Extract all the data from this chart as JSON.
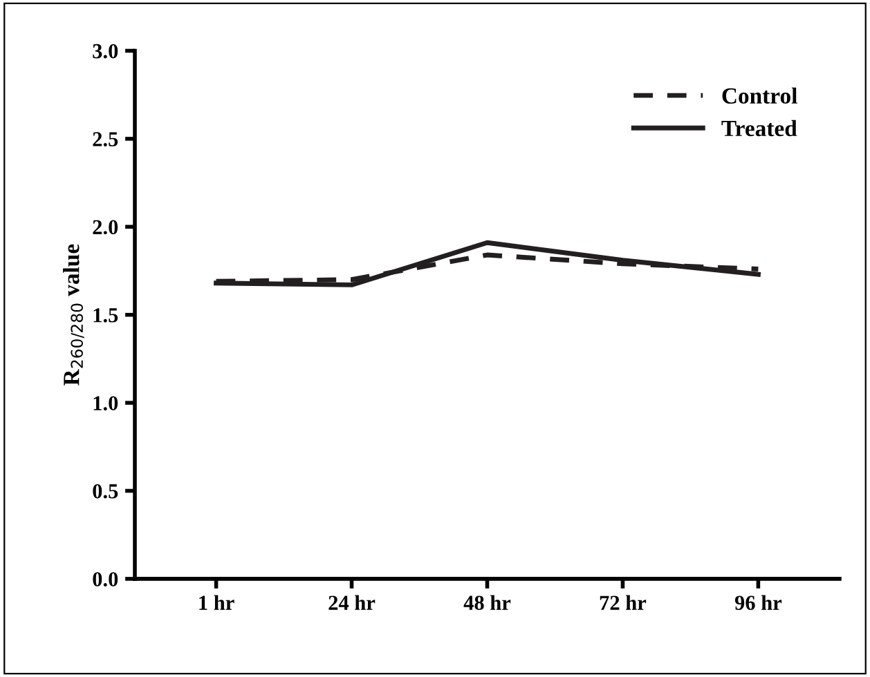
{
  "chart_data": {
    "type": "line",
    "ylabel": "R$_{260/280}$ value",
    "categories": [
      "1 hr",
      "24 hr",
      "48 hr",
      "72 hr",
      "96 hr"
    ],
    "series": [
      {
        "name": "Control",
        "color": "#231f20",
        "line_style": "dashed",
        "values": [
          1.69,
          1.7,
          1.84,
          1.79,
          1.76
        ]
      },
      {
        "name": "Treated",
        "color": "#231f20",
        "line_style": "solid",
        "values": [
          1.68,
          1.67,
          1.91,
          1.81,
          1.73
        ]
      }
    ],
    "ylim": [
      0,
      3
    ],
    "yticks": [
      {
        "value": 0,
        "label": "0.0"
      },
      {
        "value": 0.5,
        "label": "0.5"
      },
      {
        "value": 1,
        "label": "1.0"
      },
      {
        "value": 1.5,
        "label": "1.5"
      },
      {
        "value": 2,
        "label": "2.0"
      },
      {
        "value": 2.5,
        "label": "2.5"
      },
      {
        "value": 3,
        "label": "3.0"
      }
    ],
    "grid": false,
    "legend": "top right",
    "marker": "none"
  }
}
